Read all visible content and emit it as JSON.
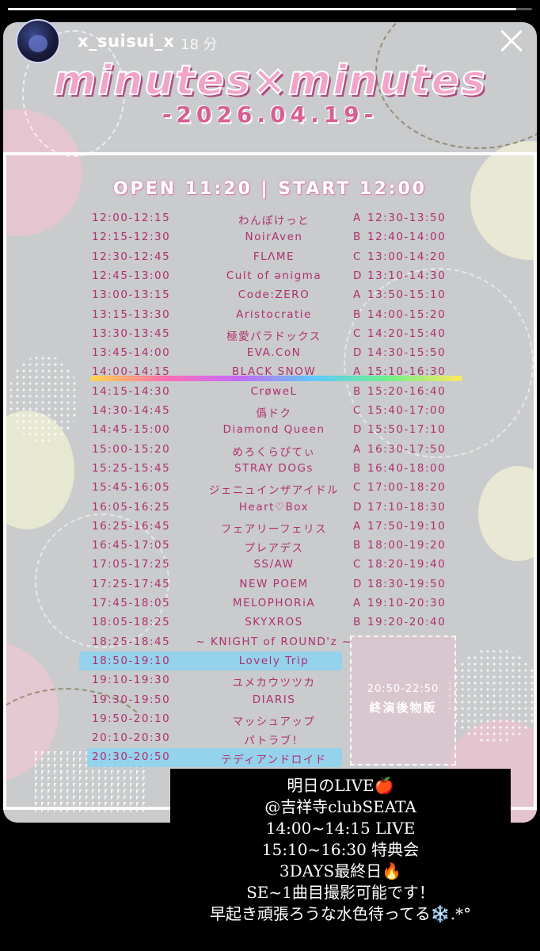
{
  "story": {
    "progress": 0.97,
    "username": "x_suisui_x",
    "time_ago": "18 分"
  },
  "poster": {
    "title": "minutes×minutes",
    "date": "-2026.04.19-",
    "open_start": "OPEN 11:20 | START 12:00",
    "schedule": [
      {
        "time": "12:00-12:15",
        "artist": "わんぽけっと",
        "booth": "A",
        "booth_time": "12:30-13:50"
      },
      {
        "time": "12:15-12:30",
        "artist": "NoirAven",
        "booth": "B",
        "booth_time": "12:40-14:00"
      },
      {
        "time": "12:30-12:45",
        "artist": "FLΛME",
        "booth": "C",
        "booth_time": "13:00-14:20"
      },
      {
        "time": "12:45-13:00",
        "artist": "Cult of ənigma",
        "booth": "D",
        "booth_time": "13:10-14:30"
      },
      {
        "time": "13:00-13:15",
        "artist": "Code:ZERO",
        "booth": "A",
        "booth_time": "13:50-15:10"
      },
      {
        "time": "13:15-13:30",
        "artist": "Aristocratie",
        "booth": "B",
        "booth_time": "14:00-15:20"
      },
      {
        "time": "13:30-13:45",
        "artist": "極愛パラドックス",
        "booth": "C",
        "booth_time": "14:20-15:40"
      },
      {
        "time": "13:45-14:00",
        "artist": "EVA.CoN",
        "booth": "D",
        "booth_time": "14:30-15:50"
      },
      {
        "time": "14:00-14:15",
        "artist": "BLACK SNOW",
        "booth": "A",
        "booth_time": "15:10-16:30"
      },
      {
        "time": "14:15-14:30",
        "artist": "CrøweL",
        "booth": "B",
        "booth_time": "15:20-16:40"
      },
      {
        "time": "14:30-14:45",
        "artist": "僞ドク",
        "booth": "C",
        "booth_time": "15:40-17:00"
      },
      {
        "time": "14:45-15:00",
        "artist": "Diamond Queen",
        "booth": "D",
        "booth_time": "15:50-17:10"
      },
      {
        "time": "15:00-15:20",
        "artist": "めろくらぴてぃ",
        "booth": "A",
        "booth_time": "16:30-17:50"
      },
      {
        "time": "15:25-15:45",
        "artist": "STRAY DOGs",
        "booth": "B",
        "booth_time": "16:40-18:00"
      },
      {
        "time": "15:45-16:05",
        "artist": "ジェニュインザアイドル",
        "booth": "C",
        "booth_time": "17:00-18:20"
      },
      {
        "time": "16:05-16:25",
        "artist": "Heart♡Box",
        "booth": "D",
        "booth_time": "17:10-18:30"
      },
      {
        "time": "16:25-16:45",
        "artist": "フェアリーフェリス",
        "booth": "A",
        "booth_time": "17:50-19:10"
      },
      {
        "time": "16:45-17:05",
        "artist": "プレアデス",
        "booth": "B",
        "booth_time": "18:00-19:20"
      },
      {
        "time": "17:05-17:25",
        "artist": "SS/AW",
        "booth": "C",
        "booth_time": "18:20-19:40"
      },
      {
        "time": "17:25-17:45",
        "artist": "NEW POEM",
        "booth": "D",
        "booth_time": "18:30-19:50"
      },
      {
        "time": "17:45-18:05",
        "artist": "MELOPHORiA",
        "booth": "A",
        "booth_time": "19:10-20:30"
      },
      {
        "time": "18:05-18:25",
        "artist": "SKYXROS",
        "booth": "B",
        "booth_time": "19:20-20:40"
      },
      {
        "time": "18:25-18:45",
        "artist": "~ KNIGHT of ROUND'z ~",
        "booth": "",
        "booth_time": ""
      },
      {
        "time": "18:50-19:10",
        "artist": "Lovely Trip",
        "booth": "",
        "booth_time": ""
      },
      {
        "time": "19:10-19:30",
        "artist": "ユメカウツツカ",
        "booth": "",
        "booth_time": ""
      },
      {
        "time": "19:30-19:50",
        "artist": "DIARIS",
        "booth": "",
        "booth_time": ""
      },
      {
        "time": "19:50-20:10",
        "artist": "マッシュアップ",
        "booth": "",
        "booth_time": ""
      },
      {
        "time": "20:10-20:30",
        "artist": "パトラブ！",
        "booth": "",
        "booth_time": ""
      },
      {
        "time": "20:30-20:50",
        "artist": "テディアンドロイド",
        "booth": "",
        "booth_time": ""
      }
    ],
    "merch": {
      "time": "20:50-22:50",
      "label": "終演後物販"
    }
  },
  "caption": {
    "lines": [
      "明日のLIVE🍎",
      "@吉祥寺clubSEATA",
      "14:00~14:15 LIVE",
      "15:10~16:30 特典会",
      "3DAYS最終日🔥",
      "SE~1曲目撮影可能です！",
      "早起き頑張ろうな水色待ってる❄️.*°"
    ]
  }
}
